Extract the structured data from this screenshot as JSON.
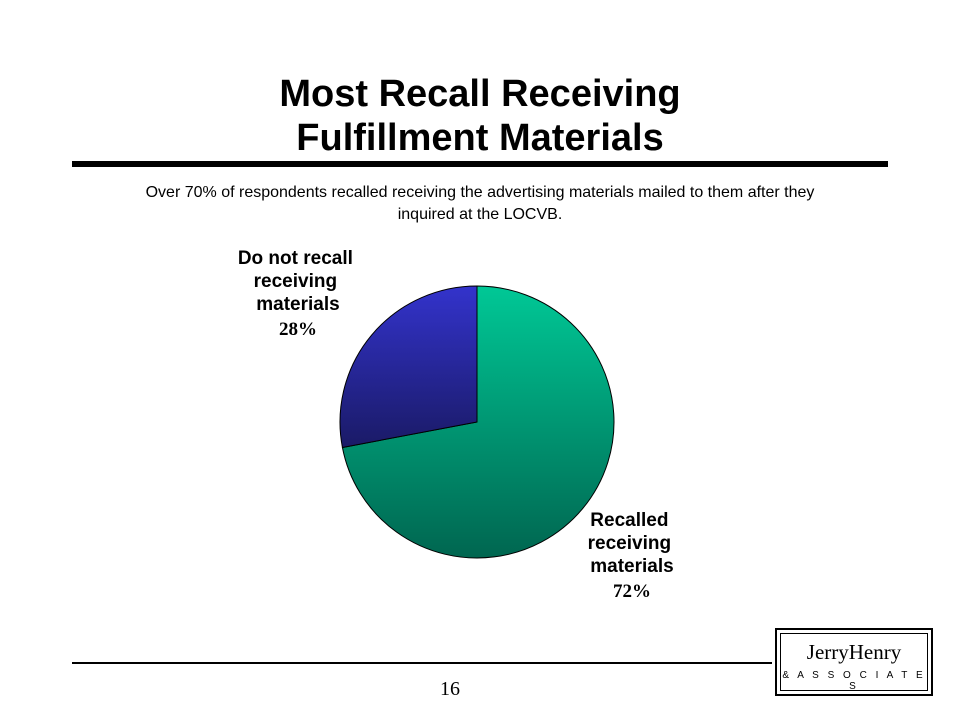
{
  "slide": {
    "title_line1": "Most Recall Receiving",
    "title_line2": "Fulfillment Materials",
    "subtitle_line1": "Over 70% of respondents recalled receiving the advertising materials mailed to them after they",
    "subtitle_line2": "inquired at the LOCVB.",
    "page_number": "16"
  },
  "logo": {
    "name": "JerryHenry",
    "subtitle": "& A S S O C I A T E S"
  },
  "colors": {
    "recalled_light": "#00C896",
    "recalled_dark": "#006650",
    "notrecall_light": "#3333CC",
    "notrecall_dark": "#1A1A66"
  },
  "chart_data": {
    "type": "pie",
    "title": "",
    "slices": [
      {
        "label_lines": [
          "Recalled",
          "receiving",
          "materials"
        ],
        "value_label": "72%",
        "value": 72
      },
      {
        "label_lines": [
          "Do not recall",
          "receiving",
          "materials"
        ],
        "value_label": "28%",
        "value": 28
      }
    ]
  }
}
